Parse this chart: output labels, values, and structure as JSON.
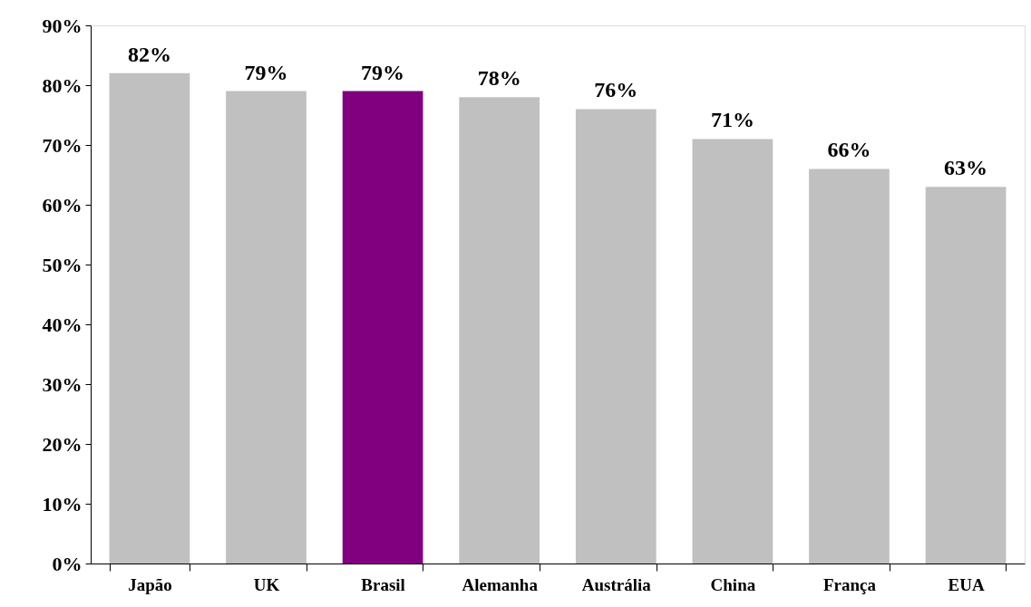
{
  "chart_data": {
    "type": "bar",
    "categories": [
      "Japão",
      "UK",
      "Brasil",
      "Alemanha",
      "Austrália",
      "China",
      "França",
      "EUA"
    ],
    "values": [
      82,
      79,
      79,
      78,
      76,
      71,
      66,
      63
    ],
    "colors": [
      "#c0c0c0",
      "#c0c0c0",
      "#800080",
      "#c0c0c0",
      "#c0c0c0",
      "#c0c0c0",
      "#c0c0c0",
      "#c0c0c0"
    ],
    "value_labels": [
      "82%",
      "79%",
      "79%",
      "78%",
      "76%",
      "71%",
      "66%",
      "63%"
    ],
    "ylim": [
      0,
      90
    ],
    "yticks": [
      {
        "value": 0,
        "label": "0%"
      },
      {
        "value": 10,
        "label": "10%"
      },
      {
        "value": 20,
        "label": "20%"
      },
      {
        "value": 30,
        "label": "30%"
      },
      {
        "value": 40,
        "label": "40%"
      },
      {
        "value": 50,
        "label": "50%"
      },
      {
        "value": 60,
        "label": "60%"
      },
      {
        "value": 70,
        "label": "70%"
      },
      {
        "value": 80,
        "label": "80%"
      },
      {
        "value": 90,
        "label": "90%"
      }
    ],
    "grid": false
  }
}
